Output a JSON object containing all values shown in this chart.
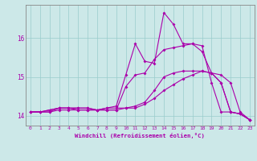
{
  "xlabel": "Windchill (Refroidissement éolien,°C)",
  "bg_color": "#cce8e8",
  "line_color": "#aa00aa",
  "grid_color": "#99cccc",
  "axis_color": "#888888",
  "xlim": [
    -0.5,
    23.5
  ],
  "ylim": [
    13.75,
    16.85
  ],
  "xticks": [
    0,
    1,
    2,
    3,
    4,
    5,
    6,
    7,
    8,
    9,
    10,
    11,
    12,
    13,
    14,
    15,
    16,
    17,
    18,
    19,
    20,
    21,
    22,
    23
  ],
  "yticks": [
    14,
    15,
    16
  ],
  "line1_x": [
    0,
    1,
    2,
    3,
    4,
    5,
    6,
    7,
    8,
    9,
    10,
    11,
    12,
    13,
    14,
    15,
    16,
    17,
    18,
    19,
    20,
    21,
    22,
    23
  ],
  "line1_y": [
    14.1,
    14.1,
    14.15,
    14.2,
    14.2,
    14.2,
    14.2,
    14.15,
    14.2,
    14.25,
    15.05,
    15.85,
    15.4,
    15.35,
    16.65,
    16.35,
    15.85,
    15.85,
    15.65,
    15.1,
    15.05,
    14.85,
    14.1,
    13.9
  ],
  "line2_x": [
    0,
    1,
    2,
    3,
    4,
    5,
    6,
    7,
    8,
    9,
    10,
    11,
    12,
    13,
    14,
    15,
    16,
    17,
    18,
    19,
    20,
    21,
    22,
    23
  ],
  "line2_y": [
    14.1,
    14.1,
    14.15,
    14.2,
    14.2,
    14.2,
    14.2,
    14.15,
    14.15,
    14.15,
    14.75,
    15.05,
    15.1,
    15.45,
    15.7,
    15.75,
    15.8,
    15.85,
    15.8,
    14.85,
    14.1,
    14.1,
    14.05,
    13.9
  ],
  "line3_x": [
    0,
    1,
    2,
    3,
    4,
    5,
    6,
    7,
    8,
    9,
    10,
    11,
    12,
    13,
    14,
    15,
    16,
    17,
    18,
    19,
    20,
    21,
    22,
    23
  ],
  "line3_y": [
    14.1,
    14.1,
    14.1,
    14.2,
    14.2,
    14.15,
    14.15,
    14.15,
    14.2,
    14.2,
    14.2,
    14.25,
    14.35,
    14.65,
    15.0,
    15.1,
    15.15,
    15.15,
    15.15,
    15.1,
    14.85,
    14.1,
    14.05,
    13.9
  ],
  "line4_x": [
    0,
    1,
    2,
    3,
    4,
    5,
    6,
    7,
    8,
    9,
    10,
    11,
    12,
    13,
    14,
    15,
    16,
    17,
    18,
    19,
    20,
    21,
    22,
    23
  ],
  "line4_y": [
    14.1,
    14.1,
    14.1,
    14.15,
    14.15,
    14.15,
    14.15,
    14.15,
    14.15,
    14.15,
    14.2,
    14.2,
    14.3,
    14.45,
    14.65,
    14.8,
    14.95,
    15.05,
    15.15,
    15.1,
    14.85,
    14.1,
    14.05,
    13.9
  ]
}
